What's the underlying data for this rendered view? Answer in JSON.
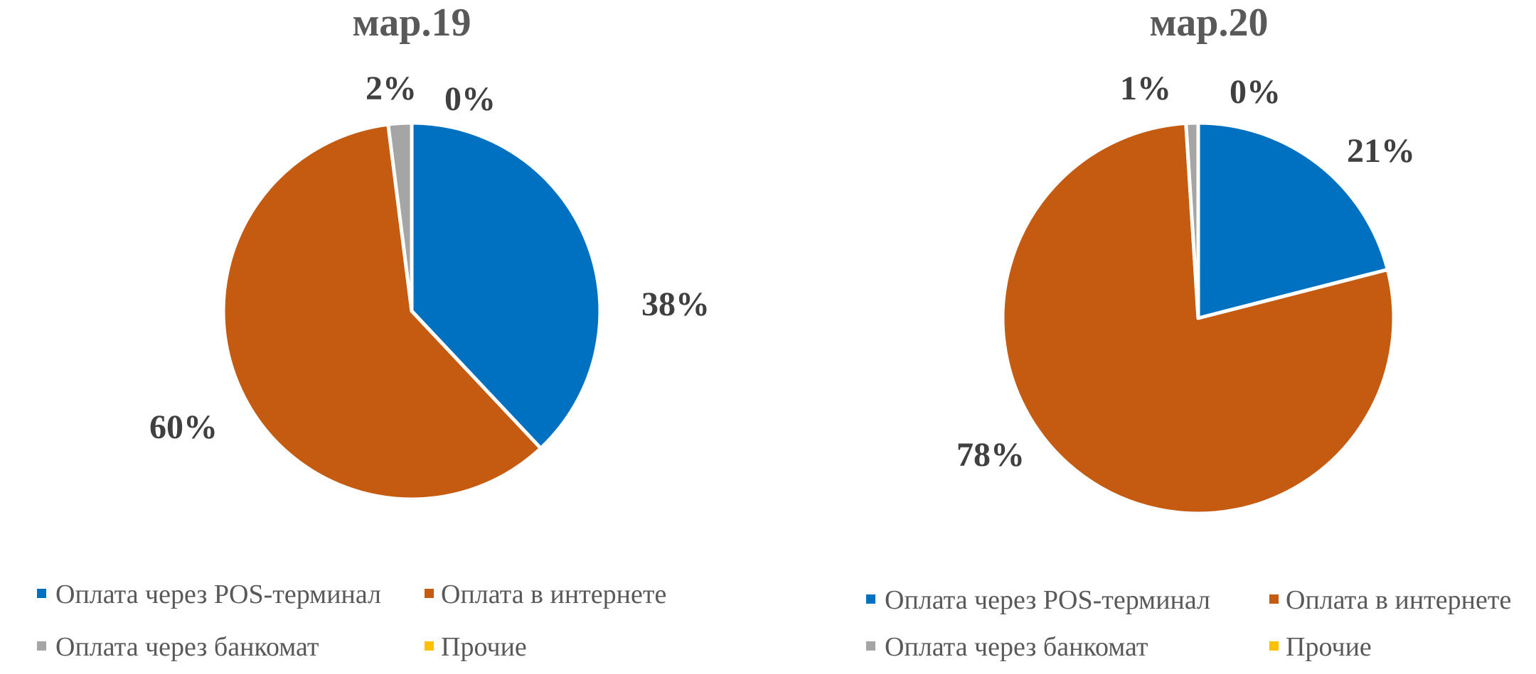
{
  "chart_data": [
    {
      "type": "pie",
      "title": "мар.19",
      "categories": [
        "Оплата через POS-терминал",
        "Оплата в интернете",
        "Оплата через банкомат",
        "Прочие"
      ],
      "values": [
        38,
        60,
        2,
        0
      ],
      "data_labels": [
        "38%",
        "60%",
        "2%",
        "0%"
      ],
      "colors": [
        "#0070C0",
        "#C55A11",
        "#A5A5A5",
        "#FFC000"
      ],
      "legend": [
        "Оплата через POS-терминал",
        "Оплата в интернете",
        "Оплата через банкомат",
        "Прочие"
      ],
      "legend_position": "bottom"
    },
    {
      "type": "pie",
      "title": "мар.20",
      "categories": [
        "Оплата через POS-терминал",
        "Оплата в интернете",
        "Оплата через банкомат",
        "Прочие"
      ],
      "values": [
        21,
        78,
        1,
        0
      ],
      "data_labels": [
        "21%",
        "78%",
        "1%",
        "0%"
      ],
      "colors": [
        "#0070C0",
        "#C55A11",
        "#A5A5A5",
        "#FFC000"
      ],
      "legend": [
        "Оплата через POS-терминал",
        "Оплата в интернете",
        "Оплата через банкомат",
        "Прочие"
      ],
      "legend_position": "bottom"
    }
  ]
}
